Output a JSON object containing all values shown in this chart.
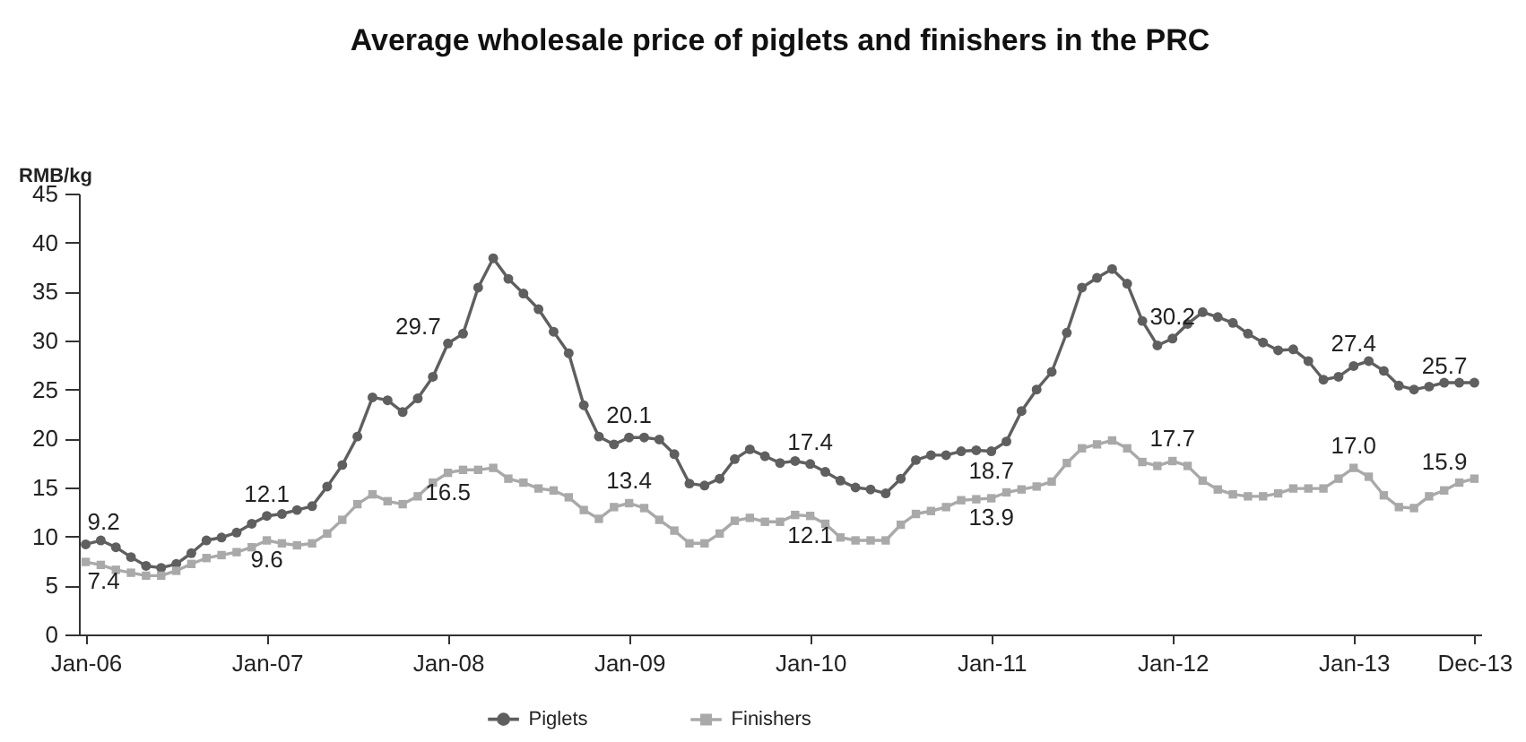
{
  "chart_data": {
    "type": "line",
    "title": "Average wholesale price of piglets and finishers in the PRC",
    "ylabel": "RMB/kg",
    "categories": [
      "Jan-06",
      null,
      null,
      null,
      null,
      null,
      null,
      null,
      null,
      null,
      null,
      null,
      "Jan-07",
      null,
      null,
      null,
      null,
      null,
      null,
      null,
      null,
      null,
      null,
      null,
      "Jan-08",
      null,
      null,
      null,
      null,
      null,
      null,
      null,
      null,
      null,
      null,
      null,
      "Jan-09",
      null,
      null,
      null,
      null,
      null,
      null,
      null,
      null,
      null,
      null,
      null,
      "Jan-10",
      null,
      null,
      null,
      null,
      null,
      null,
      null,
      null,
      null,
      null,
      null,
      "Jan-11",
      null,
      null,
      null,
      null,
      null,
      null,
      null,
      null,
      null,
      null,
      null,
      "Jan-12",
      null,
      null,
      null,
      null,
      null,
      null,
      null,
      null,
      null,
      null,
      null,
      "Jan-13",
      null,
      null,
      null,
      null,
      null,
      null,
      null,
      "Dec-13"
    ],
    "series": [
      {
        "name": "Piglets",
        "color": "#5f5f5f",
        "marker": "circle",
        "values": [
          9.2,
          9.6,
          8.9,
          7.9,
          7.0,
          6.8,
          7.2,
          8.3,
          9.6,
          9.9,
          10.4,
          11.3,
          12.1,
          12.3,
          12.7,
          13.1,
          15.1,
          17.3,
          20.2,
          24.2,
          23.9,
          22.7,
          24.1,
          26.3,
          29.7,
          30.7,
          35.4,
          38.4,
          36.3,
          34.8,
          33.2,
          30.9,
          28.7,
          23.4,
          20.2,
          19.4,
          20.1,
          20.1,
          19.9,
          18.4,
          15.4,
          15.2,
          15.9,
          17.9,
          18.9,
          18.2,
          17.5,
          17.7,
          17.4,
          16.6,
          15.7,
          15.0,
          14.8,
          14.4,
          15.9,
          17.8,
          18.3,
          18.3,
          18.7,
          18.8,
          18.7,
          19.7,
          22.8,
          25.0,
          26.8,
          30.8,
          35.4,
          36.4,
          37.3,
          35.8,
          32.0,
          29.5,
          30.2,
          31.7,
          32.9,
          32.4,
          31.8,
          30.7,
          29.8,
          29.0,
          29.1,
          27.9,
          26.0,
          26.3,
          27.4,
          27.9,
          26.9,
          25.4,
          25.0,
          25.3,
          25.7,
          25.7,
          25.7
        ],
        "value_labels": [
          "9.2",
          null,
          null,
          null,
          null,
          null,
          null,
          null,
          null,
          null,
          null,
          null,
          "12.1",
          null,
          null,
          null,
          null,
          null,
          null,
          null,
          null,
          null,
          null,
          null,
          "29.7",
          null,
          null,
          null,
          null,
          null,
          null,
          null,
          null,
          null,
          null,
          null,
          "20.1",
          null,
          null,
          null,
          null,
          null,
          null,
          null,
          null,
          null,
          null,
          null,
          "17.4",
          null,
          null,
          null,
          null,
          null,
          null,
          null,
          null,
          null,
          null,
          null,
          "18.7",
          null,
          null,
          null,
          null,
          null,
          null,
          null,
          null,
          null,
          null,
          null,
          "30.2",
          null,
          null,
          null,
          null,
          null,
          null,
          null,
          null,
          null,
          null,
          null,
          "27.4",
          null,
          null,
          null,
          null,
          null,
          null,
          null,
          "25.7"
        ]
      },
      {
        "name": "Finishers",
        "color": "#a9a9a9",
        "marker": "square",
        "values": [
          7.4,
          7.1,
          6.6,
          6.3,
          6.0,
          6.0,
          6.5,
          7.2,
          7.8,
          8.1,
          8.4,
          8.9,
          9.6,
          9.3,
          9.1,
          9.3,
          10.3,
          11.7,
          13.3,
          14.3,
          13.6,
          13.3,
          14.1,
          15.5,
          16.5,
          16.8,
          16.8,
          17.0,
          15.9,
          15.5,
          14.9,
          14.7,
          14.0,
          12.7,
          11.8,
          13.0,
          13.4,
          12.9,
          11.7,
          10.6,
          9.3,
          9.3,
          10.3,
          11.6,
          11.9,
          11.5,
          11.5,
          12.2,
          12.1,
          11.3,
          9.9,
          9.6,
          9.6,
          9.6,
          11.2,
          12.3,
          12.6,
          13.0,
          13.7,
          13.8,
          13.9,
          14.5,
          14.8,
          15.1,
          15.6,
          17.5,
          19.0,
          19.4,
          19.8,
          19.0,
          17.6,
          17.2,
          17.7,
          17.2,
          15.7,
          14.8,
          14.3,
          14.1,
          14.1,
          14.4,
          14.9,
          14.9,
          14.9,
          15.9,
          17.0,
          16.1,
          14.2,
          13.0,
          12.9,
          14.1,
          14.7,
          15.5,
          15.9
        ],
        "value_labels": [
          "7.4",
          null,
          null,
          null,
          null,
          null,
          null,
          null,
          null,
          null,
          null,
          null,
          "9.6",
          null,
          null,
          null,
          null,
          null,
          null,
          null,
          null,
          null,
          null,
          null,
          "16.5",
          null,
          null,
          null,
          null,
          null,
          null,
          null,
          null,
          null,
          null,
          null,
          "13.4",
          null,
          null,
          null,
          null,
          null,
          null,
          null,
          null,
          null,
          null,
          null,
          "12.1",
          null,
          null,
          null,
          null,
          null,
          null,
          null,
          null,
          null,
          null,
          null,
          "13.9",
          null,
          null,
          null,
          null,
          null,
          null,
          null,
          null,
          null,
          null,
          null,
          "17.7",
          null,
          null,
          null,
          null,
          null,
          null,
          null,
          null,
          null,
          null,
          null,
          "17.0",
          null,
          null,
          null,
          null,
          null,
          null,
          null,
          "15.9"
        ]
      }
    ],
    "ylim": [
      0,
      45
    ],
    "yticks": [
      0,
      5,
      10,
      15,
      20,
      25,
      30,
      35,
      40,
      45
    ],
    "legend": "bottom",
    "line_style": "solid"
  }
}
